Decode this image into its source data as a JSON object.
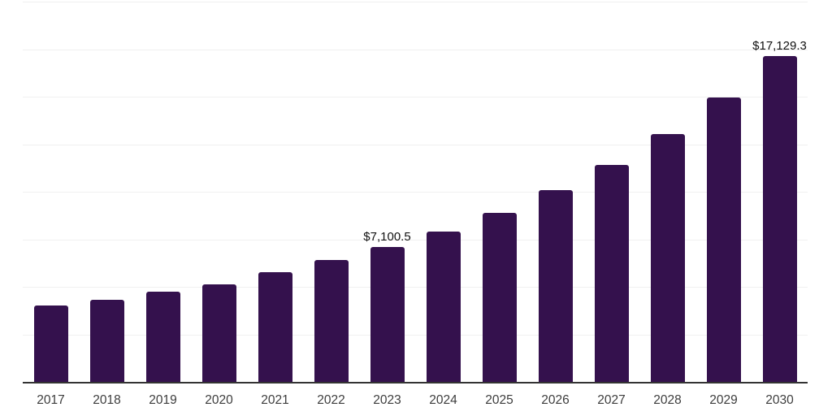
{
  "chart": {
    "background_color": "#ffffff",
    "bar_color": "#34114D",
    "gridline_color": "#f0f0f0",
    "axis_line_color": "#333333",
    "value_label_color": "#111111",
    "tick_label_color": "#3d3d3d"
  },
  "chart_data": {
    "type": "bar",
    "title": "",
    "xlabel": "",
    "ylabel": "",
    "categories": [
      "2017",
      "2018",
      "2019",
      "2020",
      "2021",
      "2022",
      "2023",
      "2024",
      "2025",
      "2026",
      "2027",
      "2028",
      "2029",
      "2030"
    ],
    "values": [
      4030,
      4320,
      4730,
      5140,
      5775,
      6390,
      7100.5,
      7915,
      8910,
      10080,
      11405,
      13050,
      14945,
      17129.3
    ],
    "data_labels": [
      "",
      "",
      "",
      "",
      "",
      "",
      "$7,100.5",
      "",
      "",
      "",
      "",
      "",
      "",
      "$17,129.3"
    ],
    "ylim": [
      0,
      20000
    ],
    "gridline_step": 2500,
    "grid": true,
    "legend": false,
    "y_tick_labels_visible": false
  }
}
